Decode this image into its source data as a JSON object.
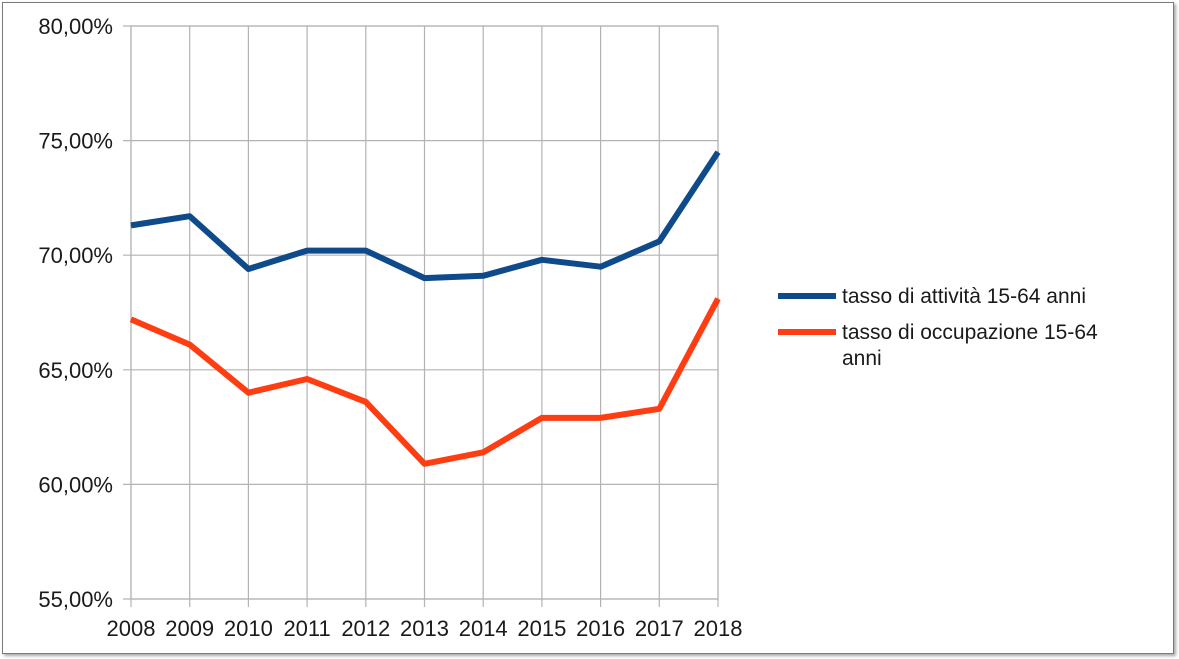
{
  "chart_data": {
    "type": "line",
    "categories": [
      "2008",
      "2009",
      "2010",
      "2011",
      "2012",
      "2013",
      "2014",
      "2015",
      "2016",
      "2017",
      "2018"
    ],
    "series": [
      {
        "name": "tasso di attività 15-64 anni",
        "name_lines": [
          "tasso di attività 15-64 anni"
        ],
        "color": "#0f4a8a",
        "values": [
          71.3,
          71.7,
          69.4,
          70.2,
          70.2,
          69.0,
          69.1,
          69.8,
          69.5,
          70.6,
          74.5
        ]
      },
      {
        "name": "tasso di occupazione 15-64 anni",
        "name_lines": [
          "tasso di occupazione 15-64",
          "anni"
        ],
        "color": "#ff3d12",
        "values": [
          67.2,
          66.1,
          64.0,
          64.6,
          63.6,
          60.9,
          61.4,
          62.9,
          62.9,
          63.3,
          68.1
        ]
      }
    ],
    "y_ticks": [
      "55,00%",
      "60,00%",
      "65,00%",
      "70,00%",
      "75,00%",
      "80,00%"
    ],
    "ylim": [
      55,
      80
    ],
    "y_step": 5,
    "grid": true,
    "legend_position": "right",
    "title": "",
    "xlabel": "",
    "ylabel": ""
  }
}
